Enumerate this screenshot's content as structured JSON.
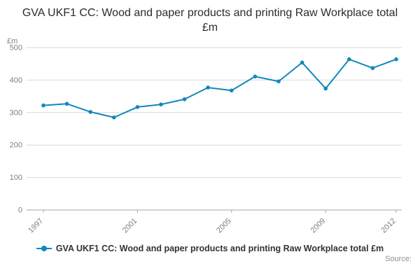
{
  "chart_data": {
    "type": "line",
    "title": "GVA UKF1 CC: Wood and paper products and printing Raw Workplace total £m",
    "x": [
      1997,
      1998,
      1999,
      2000,
      2001,
      2002,
      2003,
      2004,
      2005,
      2006,
      2007,
      2008,
      2009,
      2010,
      2011,
      2012
    ],
    "values": [
      322,
      327,
      302,
      285,
      317,
      325,
      341,
      377,
      368,
      411,
      396,
      454,
      374,
      464,
      437,
      464
    ],
    "xlabel": "",
    "ylabel": "£m",
    "ylim": [
      0,
      500
    ],
    "yticks": [
      0,
      100,
      200,
      300,
      400,
      500
    ],
    "xticks_labeled": [
      1997,
      2001,
      2005,
      2009,
      2012
    ],
    "grid": true,
    "legend_position": "bottom",
    "series_color": "#1287bd",
    "grid_color": "#d9d9d9",
    "axis_color": "#a6a6a6",
    "tick_label_color": "#7f7f7f"
  },
  "legend": {
    "label": "GVA UKF1 CC: Wood and paper products and printing Raw Workplace total £m"
  },
  "footer": {
    "source_label": "Source:"
  }
}
